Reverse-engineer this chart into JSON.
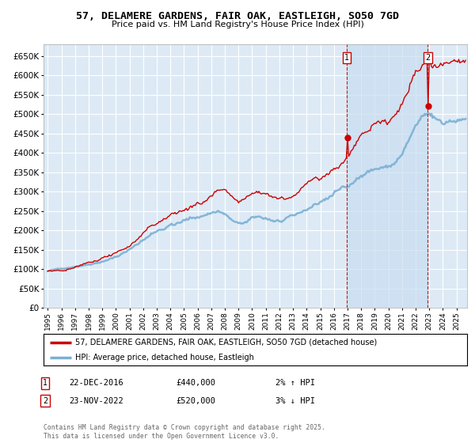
{
  "title": "57, DELAMERE GARDENS, FAIR OAK, EASTLEIGH, SO50 7GD",
  "subtitle": "Price paid vs. HM Land Registry's House Price Index (HPI)",
  "ylabel_ticks": [
    "£0",
    "£50K",
    "£100K",
    "£150K",
    "£200K",
    "£250K",
    "£300K",
    "£350K",
    "£400K",
    "£450K",
    "£500K",
    "£550K",
    "£600K",
    "£650K"
  ],
  "ytick_values": [
    0,
    50000,
    100000,
    150000,
    200000,
    250000,
    300000,
    350000,
    400000,
    450000,
    500000,
    550000,
    600000,
    650000
  ],
  "ylim": [
    0,
    680000
  ],
  "xlim_start": 1994.7,
  "xlim_end": 2025.8,
  "background_color": "#ddeaf5",
  "grid_color": "#ffffff",
  "sale1_x": 2016.97,
  "sale1_y": 440000,
  "sale1_label": "1",
  "sale2_x": 2022.9,
  "sale2_y": 520000,
  "sale2_label": "2",
  "vline_color": "#cc0000",
  "shade_color": "#c8ddf0",
  "legend_label1": "57, DELAMERE GARDENS, FAIR OAK, EASTLEIGH, SO50 7GD (detached house)",
  "legend_label2": "HPI: Average price, detached house, Eastleigh",
  "annotation1_date": "22-DEC-2016",
  "annotation1_price": "£440,000",
  "annotation1_hpi": "2% ↑ HPI",
  "annotation2_date": "23-NOV-2022",
  "annotation2_price": "£520,000",
  "annotation2_hpi": "3% ↓ HPI",
  "footer": "Contains HM Land Registry data © Crown copyright and database right 2025.\nThis data is licensed under the Open Government Licence v3.0.",
  "line_color_property": "#cc0000",
  "line_color_hpi": "#7ab0d4",
  "xtick_years": [
    1995,
    1996,
    1997,
    1998,
    1999,
    2000,
    2001,
    2002,
    2003,
    2004,
    2005,
    2006,
    2007,
    2008,
    2009,
    2010,
    2011,
    2012,
    2013,
    2014,
    2015,
    2016,
    2017,
    2018,
    2019,
    2020,
    2021,
    2022,
    2023,
    2024,
    2025
  ]
}
